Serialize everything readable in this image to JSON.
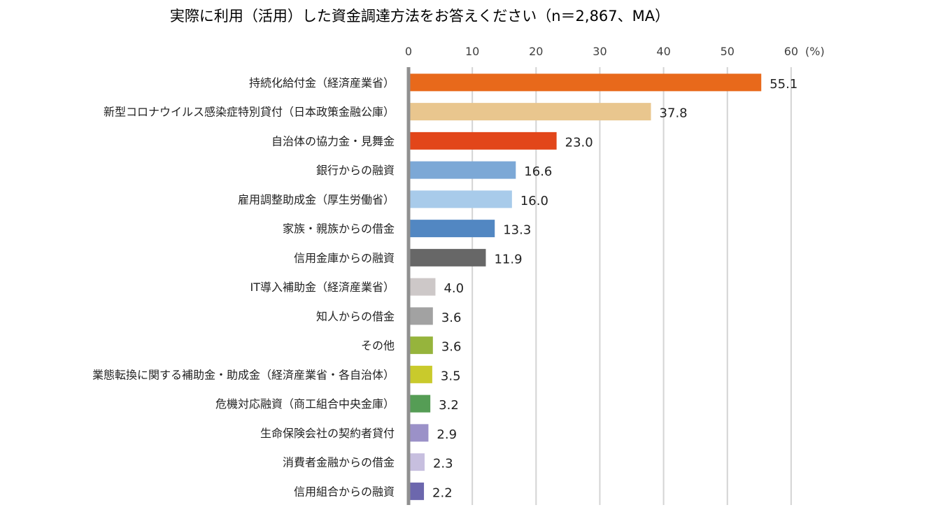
{
  "chart_data": {
    "type": "bar",
    "orientation": "horizontal",
    "title": "実際に利用（活用）した資金調達方法をお答えください（n＝2,867、MA）",
    "unit_label": "(%)",
    "xlim": [
      0,
      60
    ],
    "ticks": [
      0,
      10,
      20,
      30,
      40,
      50,
      60
    ],
    "grid": true,
    "categories": [
      "持続化給付金（経済産業省）",
      "新型コロナウイルス感染症特別貸付（日本政策金融公庫）",
      "自治体の協力金・見舞金",
      "銀行からの融資",
      "雇用調整助成金（厚生労働省）",
      "家族・親族からの借金",
      "信用金庫からの融資",
      "IT導入補助金（経済産業省）",
      "知人からの借金",
      "その他",
      "業態転換に関する補助金・助成金（経済産業省・各自治体）",
      "危機対応融資（商工組合中央金庫）",
      "生命保険会社の契約者貸付",
      "消費者金融からの借金",
      "信用組合からの融資"
    ],
    "values": [
      55.1,
      37.8,
      23.0,
      16.6,
      16.0,
      13.3,
      11.9,
      4.0,
      3.6,
      3.6,
      3.5,
      3.2,
      2.9,
      2.3,
      2.2
    ],
    "value_labels": [
      "55.1",
      "37.8",
      "23.0",
      "16.6",
      "16.0",
      "13.3",
      "11.9",
      "4.0",
      "3.6",
      "3.6",
      "3.5",
      "3.2",
      "2.9",
      "2.3",
      "2.2"
    ],
    "colors": [
      "#e8691b",
      "#e9c68e",
      "#e2461a",
      "#7ca8d6",
      "#a8cbea",
      "#5287c2",
      "#676767",
      "#cdc8c8",
      "#a2a2a2",
      "#96b43c",
      "#c9ca2c",
      "#559d55",
      "#9b91c8",
      "#c7bfdf",
      "#6c67ad"
    ]
  }
}
